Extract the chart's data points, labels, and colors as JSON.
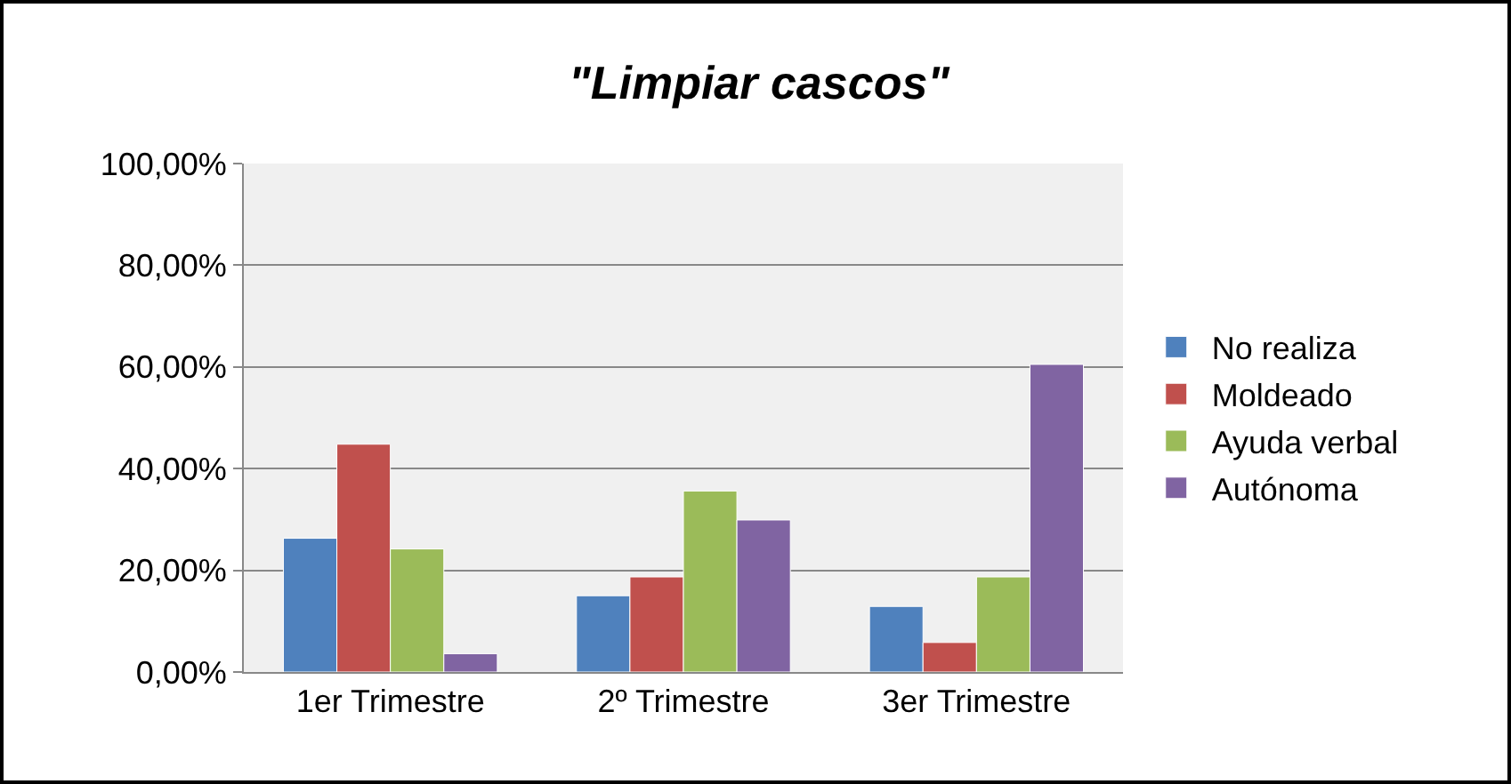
{
  "chart_data": {
    "type": "bar",
    "title": "\"Limpiar cascos\"",
    "categories": [
      "1er Trimestre",
      "2º Trimestre",
      "3er Trimestre"
    ],
    "series": [
      {
        "name": "No realiza",
        "color": "#4f81bd",
        "values": [
          26.3,
          15.0,
          12.9
        ]
      },
      {
        "name": "Moldeado",
        "color": "#c0504d",
        "values": [
          44.8,
          18.7,
          5.8
        ]
      },
      {
        "name": "Ayuda verbal",
        "color": "#9bbb59",
        "values": [
          24.2,
          35.6,
          18.7
        ]
      },
      {
        "name": "Autónoma",
        "color": "#8064a2",
        "values": [
          3.6,
          29.9,
          60.5
        ]
      }
    ],
    "ylim": [
      0,
      100
    ],
    "yticks": [
      {
        "value": 0,
        "label": "0,00%"
      },
      {
        "value": 20,
        "label": "20,00%"
      },
      {
        "value": 40,
        "label": "40,00%"
      },
      {
        "value": 60,
        "label": "60,00%"
      },
      {
        "value": 80,
        "label": "80,00%"
      },
      {
        "value": 100,
        "label": "100,00%"
      }
    ],
    "grid": "y",
    "legend": "right"
  }
}
